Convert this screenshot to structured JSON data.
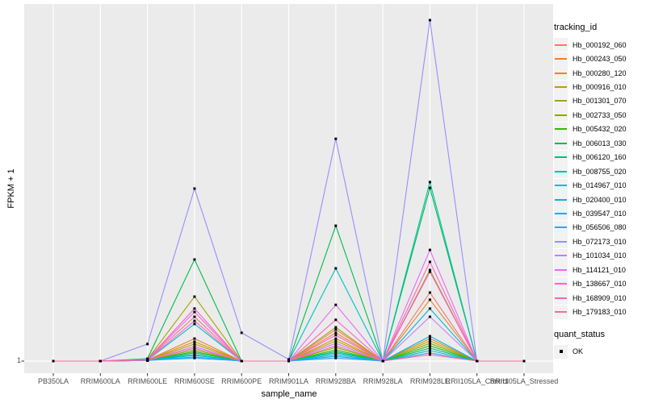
{
  "axes": {
    "y_tick_label": "1"
  },
  "legend": {
    "tracking_title": "tracking_id",
    "quant_title": "quant_status",
    "quant_items": [
      {
        "label": "OK",
        "marker": "black-square"
      }
    ],
    "key_fill": "#F2F2F2"
  },
  "chart_data": {
    "type": "line",
    "title": "",
    "xlabel": "sample_name",
    "ylabel": "FPKM + 1",
    "ytick_labels": [
      "1"
    ],
    "y_axis_note": "only the baseline tick '1' is labeled; values below are peak heights as percent of panel height above the y=1 baseline",
    "values_unit": "percent_of_panel_height",
    "panel_bg": "#EBEBEB",
    "grid_color": "#FFFFFF",
    "point_marker": "black-square",
    "legend_position": "right",
    "categories": [
      "PB350LA",
      "RRIM600LA",
      "RRIM600LE",
      "RRIM600SE",
      "RRIM600PE",
      "RRIM901LA",
      "RRIM928BA",
      "RRIM928LA",
      "RRIM928LE",
      "RRII105LA_Control",
      "RRII105LA_Stressed"
    ],
    "series": [
      {
        "name": "Hb_000192_060",
        "color": "#F8766D",
        "values": [
          0,
          0,
          0.5,
          13.0,
          0,
          0,
          9.2,
          0,
          20.1,
          0,
          0
        ]
      },
      {
        "name": "Hb_000243_050",
        "color": "#EA8331",
        "values": [
          0,
          0,
          0.3,
          6.6,
          0,
          0,
          8.3,
          0,
          18.0,
          0,
          0
        ]
      },
      {
        "name": "Hb_000280_120",
        "color": "#D89000",
        "values": [
          0,
          0,
          0.3,
          5.7,
          0,
          0,
          6.6,
          0,
          6.6,
          0,
          0
        ]
      },
      {
        "name": "Hb_000916_010",
        "color": "#C09B00",
        "values": [
          0,
          0,
          0.3,
          5.0,
          0,
          0,
          5.9,
          0,
          5.9,
          0,
          0
        ]
      },
      {
        "name": "Hb_001301_070",
        "color": "#A3A500",
        "values": [
          0,
          0,
          0.5,
          18.9,
          0,
          0,
          9.9,
          0,
          26.7,
          0,
          0
        ]
      },
      {
        "name": "Hb_002733_050",
        "color": "#7CAE00",
        "values": [
          0,
          0,
          0.2,
          3.3,
          0,
          0,
          4.0,
          0,
          5.2,
          0,
          0
        ]
      },
      {
        "name": "Hb_005432_020",
        "color": "#39B600",
        "values": [
          0,
          0,
          0.2,
          2.8,
          0,
          0,
          3.3,
          0,
          4.5,
          0,
          0
        ]
      },
      {
        "name": "Hb_006013_030",
        "color": "#00BB4E",
        "values": [
          0,
          0,
          0.7,
          29.8,
          0,
          0,
          39.7,
          0,
          50.8,
          0,
          0
        ]
      },
      {
        "name": "Hb_006120_160",
        "color": "#00BF7D",
        "values": [
          0,
          0,
          0.2,
          2.4,
          0,
          0,
          2.8,
          0,
          3.8,
          0,
          0
        ]
      },
      {
        "name": "Hb_008755_020",
        "color": "#00C1A3",
        "values": [
          0,
          0,
          0.3,
          1.9,
          0,
          0,
          2.4,
          0,
          52.5,
          0,
          0
        ]
      },
      {
        "name": "Hb_014967_010",
        "color": "#00BFC4",
        "values": [
          0,
          0,
          0.3,
          10.9,
          0,
          0,
          27.2,
          0,
          3.1,
          0,
          0
        ]
      },
      {
        "name": "Hb_020400_010",
        "color": "#00BAE0",
        "values": [
          0,
          0,
          0.2,
          1.7,
          0,
          0,
          1.9,
          0,
          15.4,
          0,
          0
        ]
      },
      {
        "name": "Hb_039547_010",
        "color": "#00B0F6",
        "values": [
          0,
          0,
          0.2,
          1.2,
          0,
          0,
          1.4,
          0,
          7.3,
          0,
          0
        ]
      },
      {
        "name": "Hb_056506_080",
        "color": "#35A2FF",
        "values": [
          0,
          0,
          0.2,
          0.9,
          0,
          0,
          0.9,
          0,
          2.4,
          0,
          0
        ]
      },
      {
        "name": "Hb_072173_010",
        "color": "#9590FF",
        "values": [
          0,
          0,
          5.0,
          50.6,
          8.3,
          0.5,
          65.2,
          0,
          100,
          0,
          0
        ]
      },
      {
        "name": "Hb_101034_010",
        "color": "#C77CFF",
        "values": [
          0,
          0,
          0.3,
          4.3,
          0,
          0,
          5.2,
          0,
          13.0,
          0,
          0
        ]
      },
      {
        "name": "Hb_114121_010",
        "color": "#E76BF3",
        "values": [
          0,
          0,
          0.5,
          14.4,
          0,
          0,
          16.5,
          0,
          32.6,
          0,
          0
        ]
      },
      {
        "name": "Hb_138667_010",
        "color": "#FA62DB",
        "values": [
          0,
          0,
          0.4,
          11.8,
          0,
          0,
          7.6,
          0,
          26.2,
          0,
          0
        ]
      },
      {
        "name": "Hb_168909_010",
        "color": "#FF62BC",
        "values": [
          0,
          0,
          0.5,
          15.4,
          0,
          0,
          12.1,
          0,
          29.1,
          0,
          0
        ]
      },
      {
        "name": "Hb_179183_010",
        "color": "#FF6A98",
        "values": [
          0,
          0,
          0.3,
          3.8,
          0,
          0,
          4.5,
          0,
          1.9,
          0,
          0
        ]
      }
    ]
  }
}
